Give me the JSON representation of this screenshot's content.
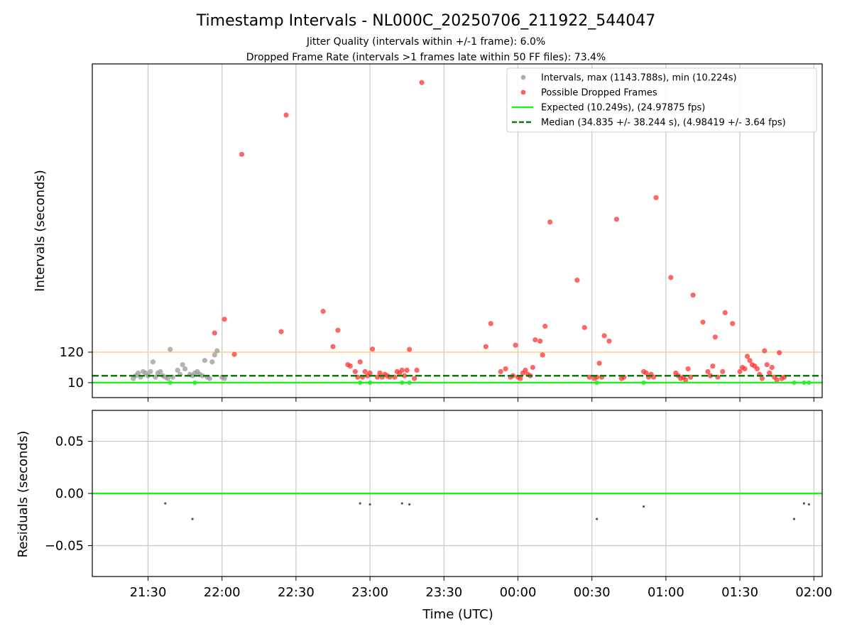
{
  "chart_data": [
    {
      "type": "scatter",
      "title": "Timestamp Intervals - NL000C_20250706_211922_544047",
      "subtitle_1": "Jitter Quality (intervals within +/-1 frame): 6.0%",
      "subtitle_2": "Dropped Frame Rate (intervals >1 frames late within 50 FF files): 73.4%",
      "ylabel": "Intervals (seconds)",
      "y_ticks": [
        {
          "value": 10,
          "label": "10"
        },
        {
          "value": 120,
          "label": "120"
        }
      ],
      "legend_position": "top-right",
      "colors": {
        "intervals": "#999999",
        "dropped": "#ff3333",
        "expected": "#22ee22",
        "median": "#0a7a0a",
        "reference": "#ffd37a"
      },
      "reference_line": 120,
      "grid_x": true,
      "series": [
        {
          "name": "Intervals, max (1143.788s), min (10.224s)",
          "kind": "scatter",
          "points": [
            [
              "21:24",
              25
            ],
            [
              "21:25",
              35
            ],
            [
              "21:26",
              45
            ],
            [
              "21:27",
              30
            ],
            [
              "21:28",
              50
            ],
            [
              "21:29",
              45
            ],
            [
              "21:30",
              35
            ],
            [
              "21:31",
              50
            ],
            [
              "21:32",
              85
            ],
            [
              "21:33",
              30
            ],
            [
              "21:34",
              45
            ],
            [
              "21:35",
              50
            ],
            [
              "21:36",
              35
            ],
            [
              "21:37",
              30
            ],
            [
              "21:38",
              25
            ],
            [
              "21:39",
              130
            ],
            [
              "21:40",
              30
            ],
            [
              "21:42",
              55
            ],
            [
              "21:43",
              40
            ],
            [
              "21:44",
              75
            ],
            [
              "21:45",
              60
            ],
            [
              "21:47",
              40
            ],
            [
              "21:48",
              35
            ],
            [
              "21:49",
              45
            ],
            [
              "21:50",
              50
            ],
            [
              "21:51",
              40
            ],
            [
              "21:52",
              35
            ],
            [
              "21:53",
              90
            ],
            [
              "21:54",
              30
            ],
            [
              "21:55",
              25
            ],
            [
              "21:56",
              85
            ],
            [
              "21:57",
              110
            ],
            [
              "21:58",
              125
            ],
            [
              "22:00",
              30
            ],
            [
              "22:01",
              25
            ]
          ]
        },
        {
          "name": "Possible Dropped Frames",
          "kind": "scatter",
          "points": [
            [
              "21:57",
              190
            ],
            [
              "22:01",
              241
            ],
            [
              "22:05",
              112
            ],
            [
              "22:08",
              850
            ],
            [
              "22:24",
              195
            ],
            [
              "22:26",
              995
            ],
            [
              "22:41",
              270
            ],
            [
              "22:45",
              140
            ],
            [
              "22:47",
              200
            ],
            [
              "22:51",
              75
            ],
            [
              "22:52",
              70
            ],
            [
              "22:54",
              50
            ],
            [
              "22:55",
              30
            ],
            [
              "22:56",
              85
            ],
            [
              "22:57",
              30
            ],
            [
              "22:58",
              50
            ],
            [
              "22:59",
              35
            ],
            [
              "23:00",
              45
            ],
            [
              "23:01",
              131
            ],
            [
              "23:03",
              30
            ],
            [
              "23:04",
              45
            ],
            [
              "23:05",
              30
            ],
            [
              "23:06",
              40
            ],
            [
              "23:07",
              35
            ],
            [
              "23:08",
              30
            ],
            [
              "23:10",
              30
            ],
            [
              "23:11",
              50
            ],
            [
              "23:12",
              45
            ],
            [
              "23:13",
              55
            ],
            [
              "23:14",
              35
            ],
            [
              "23:15",
              55
            ],
            [
              "23:16",
              130
            ],
            [
              "23:18",
              25
            ],
            [
              "23:19",
              55
            ],
            [
              "23:21",
              1115
            ],
            [
              "23:47",
              140
            ],
            [
              "23:49",
              225
            ],
            [
              "23:53",
              50
            ],
            [
              "23:55",
              60
            ],
            [
              "23:57",
              30
            ],
            [
              "23:58",
              35
            ],
            [
              "23:59",
              145
            ],
            [
              "00:00",
              30
            ],
            [
              "00:01",
              25
            ],
            [
              "00:02",
              45
            ],
            [
              "00:03",
              55
            ],
            [
              "00:04",
              40
            ],
            [
              "00:05",
              35
            ],
            [
              "00:06",
              65
            ],
            [
              "00:07",
              165
            ],
            [
              "00:09",
              160
            ],
            [
              "00:10",
              110
            ],
            [
              "00:11",
              215
            ],
            [
              "00:13",
              600
            ],
            [
              "00:24",
              385
            ],
            [
              "00:27",
              210
            ],
            [
              "00:29",
              30
            ],
            [
              "00:31",
              25
            ],
            [
              "00:32",
              30
            ],
            [
              "00:33",
              80
            ],
            [
              "00:34",
              30
            ],
            [
              "00:35",
              180
            ],
            [
              "00:37",
              160
            ],
            [
              "00:40",
              610
            ],
            [
              "00:42",
              25
            ],
            [
              "00:43",
              30
            ],
            [
              "00:51",
              50
            ],
            [
              "00:52",
              45
            ],
            [
              "00:53",
              30
            ],
            [
              "00:54",
              40
            ],
            [
              "00:55",
              30
            ],
            [
              "00:56",
              690
            ],
            [
              "01:02",
              395
            ],
            [
              "01:04",
              45
            ],
            [
              "01:05",
              35
            ],
            [
              "01:06",
              25
            ],
            [
              "01:07",
              30
            ],
            [
              "01:08",
              20
            ],
            [
              "01:09",
              60
            ],
            [
              "01:10",
              30
            ],
            [
              "01:11",
              330
            ],
            [
              "01:15",
              230
            ],
            [
              "01:17",
              50
            ],
            [
              "01:18",
              35
            ],
            [
              "01:19",
              70
            ],
            [
              "01:20",
              175
            ],
            [
              "01:21",
              30
            ],
            [
              "01:23",
              50
            ],
            [
              "01:24",
              265
            ],
            [
              "01:27",
              225
            ],
            [
              "01:30",
              50
            ],
            [
              "01:31",
              65
            ],
            [
              "01:32",
              60
            ],
            [
              "01:33",
              105
            ],
            [
              "01:34",
              90
            ],
            [
              "01:35",
              75
            ],
            [
              "01:36",
              70
            ],
            [
              "01:37",
              60
            ],
            [
              "01:38",
              40
            ],
            [
              "01:39",
              25
            ],
            [
              "01:40",
              125
            ],
            [
              "01:41",
              75
            ],
            [
              "01:42",
              45
            ],
            [
              "01:43",
              65
            ],
            [
              "01:44",
              30
            ],
            [
              "01:45",
              20
            ],
            [
              "01:46",
              118
            ],
            [
              "01:47",
              25
            ],
            [
              "01:48",
              30
            ]
          ]
        },
        {
          "name": "Expected (10.249s), (24.97875 fps)",
          "kind": "hline",
          "value": 10.249
        },
        {
          "name": "Median (34.835 +/- 38.244 s), (4.98419 +/- 3.64 fps)",
          "kind": "hline",
          "value": 34.835
        }
      ]
    },
    {
      "type": "scatter",
      "xlabel": "Time (UTC)",
      "ylabel": "Residuals (seconds)",
      "ylim": [
        -0.08,
        0.08
      ],
      "y_ticks": [
        {
          "value": 0.05,
          "label": "0.05"
        },
        {
          "value": 0.0,
          "label": "0.00"
        },
        {
          "value": -0.05,
          "label": "−0.05"
        }
      ],
      "x_ticks": [
        "21:30",
        "22:00",
        "22:30",
        "23:00",
        "23:30",
        "00:00",
        "00:30",
        "01:00",
        "01:30",
        "02:00"
      ],
      "zero_line_color": "#22ee22",
      "grid_x": true,
      "grid_y": true,
      "points": [
        [
          "21:37",
          -0.0095
        ],
        [
          "21:48",
          -0.0245
        ],
        [
          "22:56",
          -0.0095
        ],
        [
          "23:00",
          -0.0105
        ],
        [
          "23:13",
          -0.0095
        ],
        [
          "23:16",
          -0.0105
        ],
        [
          "00:32",
          -0.0245
        ],
        [
          "00:51",
          -0.0125
        ],
        [
          "01:52",
          -0.0245
        ],
        [
          "01:56",
          -0.0095
        ],
        [
          "01:58",
          -0.0105
        ]
      ]
    }
  ]
}
